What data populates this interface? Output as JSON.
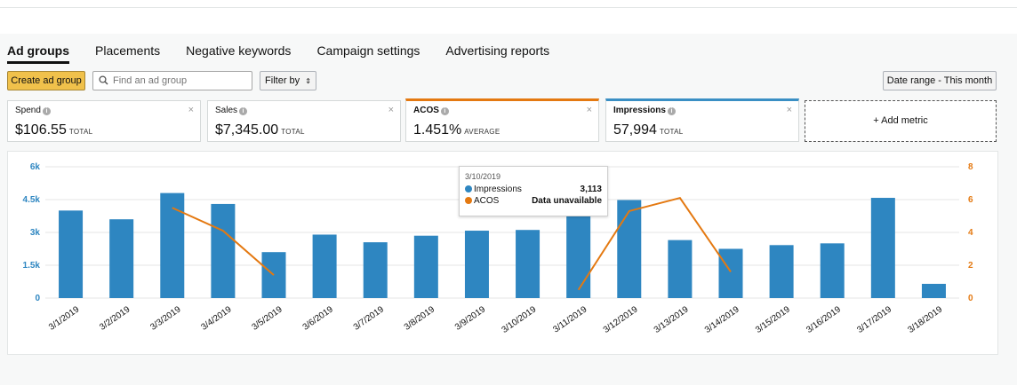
{
  "tabs": [
    {
      "label": "Ad groups",
      "active": true
    },
    {
      "label": "Placements",
      "active": false
    },
    {
      "label": "Negative keywords",
      "active": false
    },
    {
      "label": "Campaign settings",
      "active": false
    },
    {
      "label": "Advertising reports",
      "active": false
    }
  ],
  "toolbar": {
    "create_label": "Create ad group",
    "search_placeholder": "Find an ad group",
    "filter_label": "Filter by",
    "filter_arrow": "⇕",
    "date_range_label": "Date range - This month"
  },
  "metrics": [
    {
      "label": "Spend",
      "value": "$106.55",
      "unit": "TOTAL",
      "selected": false
    },
    {
      "label": "Sales",
      "value": "$7,345.00",
      "unit": "TOTAL",
      "selected": false
    },
    {
      "label": "ACOS",
      "value": "1.451%",
      "unit": "AVERAGE",
      "selected": true,
      "color": "#e47911"
    },
    {
      "label": "Impressions",
      "value": "57,994",
      "unit": "TOTAL",
      "selected": true,
      "color": "#3a8fc4"
    }
  ],
  "add_metric_label": "+ Add metric",
  "close_glyph": "×",
  "info_glyph": "i",
  "tooltip": {
    "date": "3/10/2019",
    "rows": [
      {
        "name": "Impressions",
        "value": "3,113",
        "color": "#2e86c1"
      },
      {
        "name": "ACOS",
        "value": "Data unavailable",
        "color": "#e47911"
      }
    ]
  },
  "chart_data": {
    "type": "bar",
    "categories": [
      "3/1/2019",
      "3/2/2019",
      "3/3/2019",
      "3/4/2019",
      "3/5/2019",
      "3/6/2019",
      "3/7/2019",
      "3/8/2019",
      "3/9/2019",
      "3/10/2019",
      "3/11/2019",
      "3/12/2019",
      "3/13/2019",
      "3/14/2019",
      "3/15/2019",
      "3/16/2019",
      "3/17/2019",
      "3/18/2019"
    ],
    "series": [
      {
        "type": "bar",
        "axis": "left",
        "color": "#2e86c1",
        "values": [
          4000,
          3600,
          4800,
          4300,
          2100,
          2900,
          2550,
          2850,
          3080,
          3113,
          4880,
          4480,
          2650,
          2250,
          2420,
          2500,
          4580,
          650
        ]
      },
      {
        "type": "line",
        "axis": "right",
        "color": "#e47911",
        "values": [
          null,
          null,
          5.5,
          4.1,
          1.4,
          null,
          null,
          null,
          null,
          null,
          0.5,
          5.3,
          6.1,
          1.6,
          null,
          null,
          null,
          null
        ]
      }
    ],
    "y_left": {
      "min": 0,
      "max": 6000,
      "ticks": [
        0,
        1500,
        3000,
        4500,
        6000
      ],
      "tick_labels": [
        "0",
        "1.5k",
        "3k",
        "4.5k",
        "6k"
      ]
    },
    "y_right": {
      "min": 0,
      "max": 8,
      "ticks": [
        0,
        2,
        4,
        6,
        8
      ],
      "tick_labels": [
        "0",
        "2",
        "4",
        "6",
        "8"
      ]
    },
    "grid": true
  }
}
